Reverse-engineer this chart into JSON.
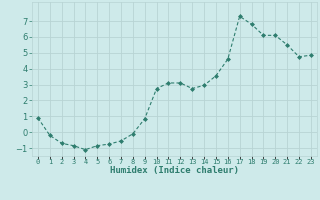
{
  "x": [
    0,
    1,
    2,
    3,
    4,
    5,
    6,
    7,
    8,
    9,
    10,
    11,
    12,
    13,
    14,
    15,
    16,
    17,
    18,
    19,
    20,
    21,
    22,
    23
  ],
  "y": [
    0.9,
    -0.2,
    -0.7,
    -0.85,
    -1.1,
    -0.85,
    -0.75,
    -0.55,
    -0.1,
    0.85,
    2.75,
    3.1,
    3.1,
    2.75,
    2.95,
    3.55,
    4.6,
    7.3,
    6.8,
    6.1,
    6.1,
    5.5,
    4.75,
    4.85
  ],
  "xlabel": "Humidex (Indice chaleur)",
  "ylim": [
    -1.5,
    8.2
  ],
  "xlim": [
    -0.5,
    23.5
  ],
  "line_color": "#2e7d6e",
  "marker_color": "#2e7d6e",
  "bg_color": "#ceeaea",
  "grid_color": "#b8d4d4",
  "axis_label_color": "#2e7d6e",
  "tick_label_color": "#2e7d6e",
  "yticks": [
    -1,
    0,
    1,
    2,
    3,
    4,
    5,
    6,
    7
  ],
  "xtick_labels": [
    "0",
    "1",
    "2",
    "3",
    "4",
    "5",
    "6",
    "7",
    "8",
    "9",
    "10",
    "11",
    "12",
    "13",
    "14",
    "15",
    "16",
    "17",
    "18",
    "19",
    "20",
    "21",
    "22",
    "23"
  ]
}
